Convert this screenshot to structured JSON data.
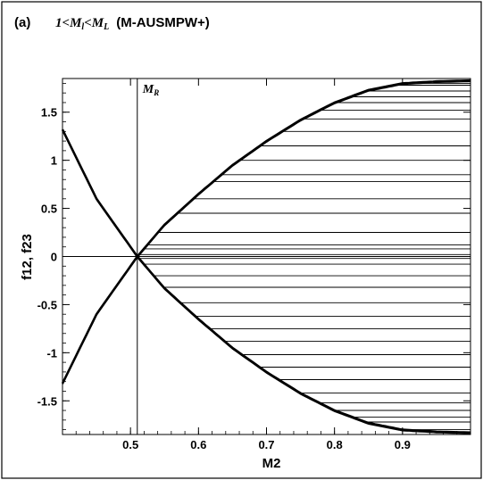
{
  "chart_data": {
    "type": "line",
    "panel_label": "(a)",
    "title_parts": {
      "cond_left": "1<",
      "m": "M",
      "sub_l": "l",
      "cond_mid": "<",
      "sub_L": "L",
      "scheme": "(M-AUSMPW+)"
    },
    "xlabel": "M2",
    "ylabel": "f12, f23",
    "xlim": [
      0.4,
      1.0
    ],
    "ylim": [
      -1.85,
      1.85
    ],
    "xticks": [
      0.5,
      0.6,
      0.7,
      0.8,
      0.9
    ],
    "yticks": [
      1.5,
      1,
      0.5,
      0,
      -0.5,
      -1,
      -1.5
    ],
    "x_tick_labels": [
      "0.5",
      "0.6",
      "0.7",
      "0.8",
      "0.9"
    ],
    "y_tick_labels": [
      "1.5",
      "1",
      "0.5",
      "0",
      "-0.5",
      "-1",
      "-1.5"
    ],
    "reference_line": {
      "x": 0.51,
      "label_main": "M",
      "label_sub": "R"
    },
    "series": [
      {
        "role": "upper curve",
        "x": [
          0.4,
          0.45,
          0.51,
          0.55,
          0.6,
          0.65,
          0.7,
          0.75,
          0.8,
          0.85,
          0.9,
          0.95,
          1.0
        ],
        "y": [
          -1.32,
          -0.6,
          0.0,
          0.33,
          0.65,
          0.95,
          1.2,
          1.42,
          1.6,
          1.73,
          1.8,
          1.82,
          1.83
        ]
      },
      {
        "role": "lower curve",
        "x": [
          0.4,
          0.45,
          0.51,
          0.55,
          0.6,
          0.65,
          0.7,
          0.75,
          0.8,
          0.85,
          0.9,
          0.95,
          1.0
        ],
        "y": [
          1.32,
          0.6,
          0.0,
          -0.33,
          -0.65,
          -0.95,
          -1.2,
          -1.42,
          -1.6,
          -1.73,
          -1.8,
          -1.82,
          -1.83
        ]
      }
    ],
    "hatch_levels_upper": [
      0.02,
      0.08,
      0.12,
      0.25,
      0.45,
      0.6,
      0.78,
      0.85,
      1.0,
      1.15,
      1.3,
      1.43,
      1.52,
      1.6,
      1.66,
      1.72,
      1.78,
      1.8
    ],
    "hatch_levels_lower": [
      -0.02,
      -0.08,
      -0.2,
      -0.32,
      -0.48,
      -0.62,
      -0.75,
      -0.88,
      -1.02,
      -1.15,
      -1.28,
      -1.42,
      -1.52,
      -1.6,
      -1.67,
      -1.72,
      -1.8
    ],
    "grid": false,
    "legend": "none"
  }
}
